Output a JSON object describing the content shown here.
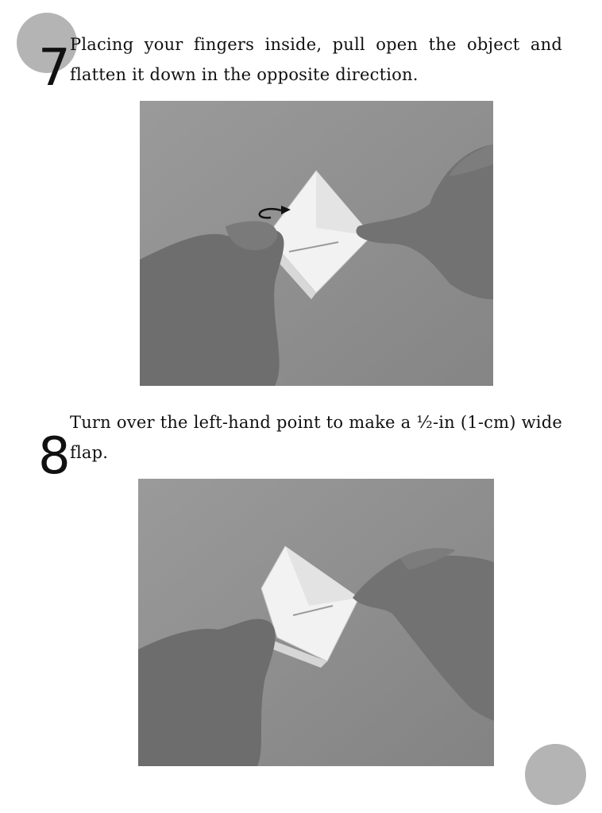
{
  "steps": [
    {
      "number": "7",
      "text": "Placing your fingers inside, pull open the object and flatten it down in the opposite direction.",
      "photo_alt": "Hands pulling open a white paper model and flattening it in the opposite direction"
    },
    {
      "number": "8",
      "text": "Turn over the left-hand point to make a ½-in (1-cm) wide flap.",
      "photo_alt": "Hands turning over the left-hand point of the white paper model"
    }
  ],
  "colors": {
    "background": "#ffffff",
    "text": "#111111",
    "photo_table": "#8c8c8c",
    "nav_circle": "#b4b4b4"
  },
  "icons": {
    "fold_arrow": "curved-arrow-icon"
  }
}
